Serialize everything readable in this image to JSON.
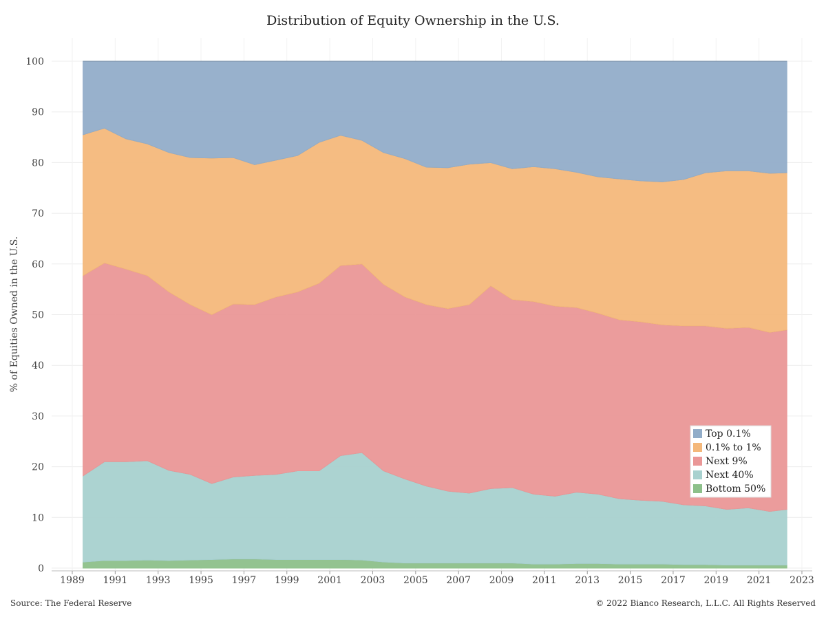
{
  "chart_data": {
    "type": "area",
    "stacked": true,
    "title": "Distribution of Equity Ownership in the U.S.",
    "xlabel": "",
    "ylabel": "% of Equities Owned in the U.S.",
    "xlim": [
      1989,
      2023
    ],
    "ylim": [
      0,
      100
    ],
    "x_ticks": [
      1989,
      1991,
      1993,
      1995,
      1997,
      1999,
      2001,
      2003,
      2005,
      2007,
      2009,
      2011,
      2013,
      2015,
      2017,
      2019,
      2021,
      2023
    ],
    "y_ticks": [
      0,
      10,
      20,
      30,
      40,
      50,
      60,
      70,
      80,
      90,
      100
    ],
    "grid": true,
    "legend_position": "bottom-right",
    "x": [
      1989.5,
      1990.5,
      1991.5,
      1992.5,
      1993.5,
      1994.5,
      1995.5,
      1996.5,
      1997.5,
      1998.5,
      1999.5,
      2000.5,
      2001.5,
      2002.5,
      2003.5,
      2004.5,
      2005.5,
      2006.5,
      2007.5,
      2008.5,
      2009.5,
      2010.5,
      2011.5,
      2012.5,
      2013.5,
      2014.5,
      2015.5,
      2016.5,
      2017.5,
      2018.5,
      2019.5,
      2020.5,
      2021.5,
      2022.3
    ],
    "series": [
      {
        "name": "Bottom 50%",
        "color": "#8dc08a",
        "values": [
          1.2,
          1.5,
          1.5,
          1.6,
          1.5,
          1.6,
          1.7,
          1.8,
          1.8,
          1.7,
          1.7,
          1.7,
          1.7,
          1.6,
          1.2,
          1.0,
          1.0,
          1.0,
          1.0,
          1.0,
          1.0,
          0.8,
          0.8,
          0.9,
          0.9,
          0.8,
          0.8,
          0.8,
          0.7,
          0.7,
          0.6,
          0.6,
          0.6,
          0.6
        ]
      },
      {
        "name": "Next 40%",
        "color": "#a8d1cf",
        "values": [
          17.0,
          19.5,
          19.5,
          19.6,
          17.8,
          16.9,
          15.0,
          16.2,
          16.5,
          16.8,
          17.5,
          17.5,
          20.5,
          21.2,
          18.0,
          16.6,
          15.2,
          14.2,
          13.8,
          14.7,
          14.9,
          13.8,
          13.4,
          14.1,
          13.7,
          12.9,
          12.6,
          12.4,
          11.8,
          11.6,
          11.0,
          11.3,
          10.6,
          11.0
        ]
      },
      {
        "name": "Next 9%",
        "color": "#ea9797",
        "values": [
          39.5,
          39.2,
          38.0,
          36.5,
          35.2,
          33.5,
          33.3,
          34.1,
          33.7,
          35.0,
          35.3,
          37.0,
          37.5,
          37.2,
          36.8,
          35.9,
          35.8,
          36.0,
          37.2,
          40.0,
          37.1,
          38.0,
          37.5,
          36.4,
          35.7,
          35.3,
          35.2,
          34.8,
          35.3,
          35.5,
          35.7,
          35.6,
          35.3,
          35.4
        ]
      },
      {
        "name": "0.1% to 1%",
        "color": "#f4b87b",
        "values": [
          27.8,
          26.6,
          25.7,
          26.0,
          27.5,
          29.0,
          30.9,
          28.9,
          27.6,
          27.0,
          26.9,
          27.8,
          25.7,
          24.4,
          26.0,
          27.3,
          27.1,
          27.8,
          27.7,
          24.3,
          25.8,
          26.6,
          27.1,
          26.7,
          26.9,
          27.8,
          27.8,
          28.2,
          28.9,
          30.2,
          31.1,
          30.9,
          31.4,
          31.0
        ]
      },
      {
        "name": "Top 0.1%",
        "color": "#92adc9",
        "values": [
          14.5,
          13.2,
          15.3,
          16.3,
          18.0,
          19.0,
          19.1,
          19.0,
          20.4,
          19.5,
          18.6,
          16.0,
          14.6,
          15.6,
          18.0,
          19.2,
          20.9,
          21.0,
          20.3,
          20.0,
          21.2,
          20.8,
          21.2,
          21.9,
          22.8,
          23.2,
          23.6,
          23.8,
          23.3,
          22.0,
          21.6,
          21.6,
          22.1,
          22.0
        ]
      }
    ]
  },
  "footer": {
    "source": "Source: The Federal Reserve",
    "copyright": "© 2022 Bianco Research, L.L.C. All Rights Reserved"
  }
}
